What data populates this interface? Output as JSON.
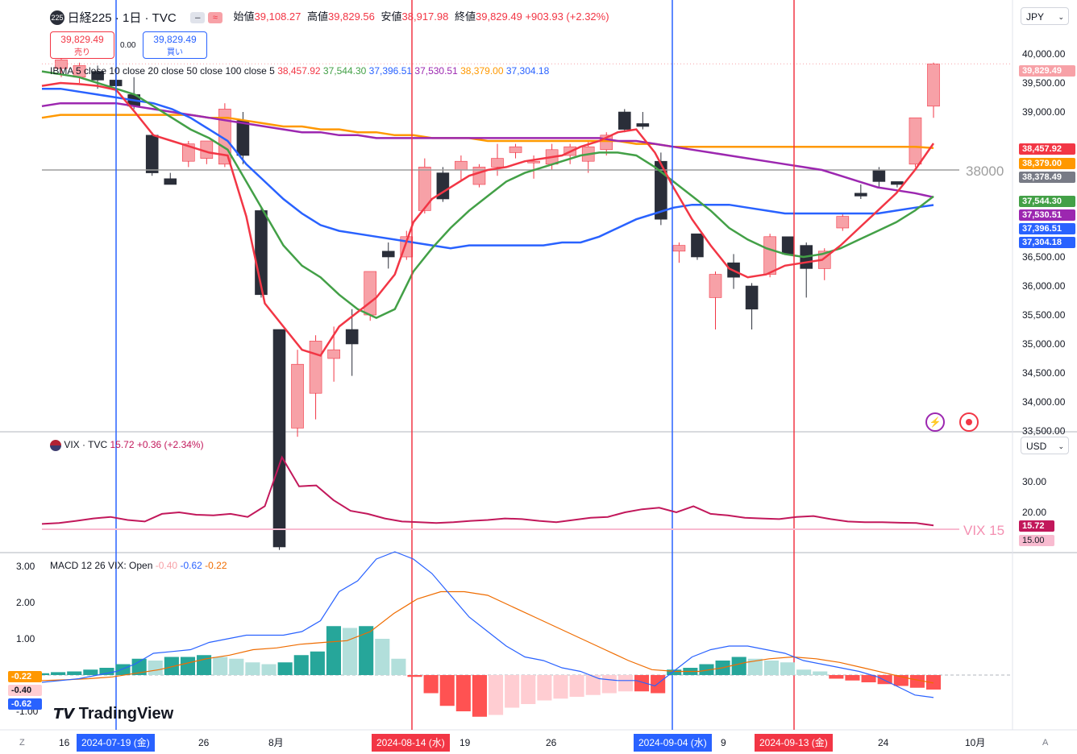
{
  "header": {
    "symbol_badge": "225",
    "symbol": "日経225 · 1日 · TVC",
    "open_label": "始値",
    "open": "39,108.27",
    "high_label": "高値",
    "high": "39,829.56",
    "low_label": "安値",
    "low": "38,917.98",
    "close_label": "終値",
    "close": "39,829.49",
    "change": "+903.93 (+2.32%)",
    "sell_price": "39,829.49",
    "sell_label": "売り",
    "spread": "0.00",
    "buy_price": "39,829.49",
    "buy_label": "買い",
    "currency": "JPY"
  },
  "indicators": {
    "ibma_label": "IBMA 5 close 10 close 20 close 50 close 100 close 5",
    "ibma_values": [
      "38,457.92",
      "37,544.30",
      "37,396.51",
      "37,530.51",
      "38,379.00",
      "37,304.18"
    ],
    "hline_label": "38000",
    "vix_label": "VIX · TVC",
    "vix_value": "15.72",
    "vix_change": "+0.36 (+2.34%)",
    "vix_currency": "USD",
    "vix_hline_label": "VIX 15",
    "macd_label": "MACD 12 26 VIX: Open",
    "macd_values": [
      "-0.40",
      "-0.62",
      "-0.22"
    ]
  },
  "price_scale": {
    "ticks": [
      "40,000.00",
      "39,500.00",
      "39,000.00",
      "38,000.00",
      "36,500.00",
      "36,000.00",
      "35,500.00",
      "35,000.00",
      "34,500.00",
      "34,000.00",
      "33,500.00"
    ],
    "labels": [
      {
        "text": "39,829.49",
        "color": "#ffffff",
        "bg": "#f7a1a7"
      },
      {
        "text": "38,457.92",
        "color": "#ffffff",
        "bg": "#f23645"
      },
      {
        "text": "38,379.00",
        "color": "#ffffff",
        "bg": "#ff9800"
      },
      {
        "text": "38,378.49",
        "color": "#ffffff",
        "bg": "#787b86"
      },
      {
        "text": "37,544.30",
        "color": "#ffffff",
        "bg": "#43a047"
      },
      {
        "text": "37,530.51",
        "color": "#ffffff",
        "bg": "#9c27b0"
      },
      {
        "text": "37,396.51",
        "color": "#ffffff",
        "bg": "#2962ff"
      },
      {
        "text": "37,304.18",
        "color": "#ffffff",
        "bg": "#2962ff"
      }
    ]
  },
  "vix_scale": {
    "ticks": [
      "30.00",
      "20.00",
      "15.00"
    ],
    "current": "15.72"
  },
  "macd_scale": {
    "ticks": [
      "3.00",
      "2.00",
      "1.00",
      "-1.00"
    ],
    "labels": [
      "-0.22",
      "-0.40",
      "-0.62"
    ]
  },
  "time_axis": {
    "ticks": [
      "16",
      "26",
      "8月",
      "19",
      "26",
      "9",
      "24",
      "10月"
    ],
    "events": [
      {
        "text": "2024-07-19 (金)",
        "color": "#2962ff"
      },
      {
        "text": "2024-08-14 (水)",
        "color": "#f23645"
      },
      {
        "text": "2024-09-04 (水)",
        "color": "#2962ff"
      },
      {
        "text": "2024-09-13 (金)",
        "color": "#f23645"
      }
    ]
  },
  "colors": {
    "up_candle": "#f7a1a7",
    "down_candle": "#2a2e39",
    "ma5": "#f23645",
    "ma10": "#43a047",
    "ma20": "#2962ff",
    "ma50": "#9c27b0",
    "ma100": "#ff9800",
    "vix": "#c2185b",
    "macd_line": "#2962ff",
    "signal_line": "#ef6c00",
    "hist_pos_strong": "#26a69a",
    "hist_pos_weak": "#b2dfdb",
    "hist_neg_strong": "#ff5252",
    "hist_neg_weak": "#ffcdd2"
  },
  "branding": {
    "logo_text": "TradingView"
  },
  "chart_data": [
    {
      "type": "candlestick",
      "title": "日経225 · 1日 · TVC",
      "candles": [
        {
          "o": 39750,
          "h": 39950,
          "l": 39600,
          "c": 39900
        },
        {
          "o": 39600,
          "h": 39850,
          "l": 39500,
          "c": 39800
        },
        {
          "o": 39700,
          "h": 39800,
          "l": 39400,
          "c": 39550
        },
        {
          "o": 39550,
          "h": 39650,
          "l": 39350,
          "c": 39450
        },
        {
          "o": 39300,
          "h": 39600,
          "l": 39050,
          "c": 39100
        },
        {
          "o": 38600,
          "h": 38650,
          "l": 37900,
          "c": 37950
        },
        {
          "o": 37850,
          "h": 37950,
          "l": 37750,
          "c": 37750
        },
        {
          "o": 38150,
          "h": 38500,
          "l": 38050,
          "c": 38450
        },
        {
          "o": 38200,
          "h": 38500,
          "l": 38100,
          "c": 38500
        },
        {
          "o": 38100,
          "h": 39150,
          "l": 38050,
          "c": 39050
        },
        {
          "o": 38850,
          "h": 39000,
          "l": 38100,
          "c": 38250
        },
        {
          "o": 37300,
          "h": 37350,
          "l": 35800,
          "c": 35850
        },
        {
          "o": 35250,
          "h": 35250,
          "l": 31450,
          "c": 31500
        },
        {
          "o": 33550,
          "h": 34900,
          "l": 33400,
          "c": 34650
        },
        {
          "o": 34150,
          "h": 35150,
          "l": 33700,
          "c": 35050
        },
        {
          "o": 34750,
          "h": 35300,
          "l": 34350,
          "c": 34900
        },
        {
          "o": 35250,
          "h": 35600,
          "l": 34450,
          "c": 35000
        },
        {
          "o": 35500,
          "h": 36250,
          "l": 35400,
          "c": 36250
        },
        {
          "o": 36600,
          "h": 36750,
          "l": 36300,
          "c": 36500
        },
        {
          "o": 36500,
          "h": 36950,
          "l": 36450,
          "c": 36850
        },
        {
          "o": 37300,
          "h": 38200,
          "l": 37250,
          "c": 38050
        },
        {
          "o": 37950,
          "h": 38050,
          "l": 37450,
          "c": 37500
        },
        {
          "o": 38000,
          "h": 38250,
          "l": 37800,
          "c": 38150
        },
        {
          "o": 37750,
          "h": 38100,
          "l": 37700,
          "c": 38050
        },
        {
          "o": 38050,
          "h": 38450,
          "l": 37900,
          "c": 38200
        },
        {
          "o": 38300,
          "h": 38450,
          "l": 38200,
          "c": 38400
        },
        {
          "o": 38150,
          "h": 38250,
          "l": 37850,
          "c": 38150
        },
        {
          "o": 38100,
          "h": 38450,
          "l": 38000,
          "c": 38350
        },
        {
          "o": 38250,
          "h": 38450,
          "l": 38100,
          "c": 38400
        },
        {
          "o": 38150,
          "h": 38500,
          "l": 37950,
          "c": 38400
        },
        {
          "o": 38350,
          "h": 38650,
          "l": 38250,
          "c": 38600
        },
        {
          "o": 39000,
          "h": 39050,
          "l": 38650,
          "c": 38700
        },
        {
          "o": 38800,
          "h": 39000,
          "l": 38700,
          "c": 38750
        },
        {
          "o": 38150,
          "h": 38300,
          "l": 37050,
          "c": 37150
        },
        {
          "o": 36600,
          "h": 36750,
          "l": 36400,
          "c": 36700
        },
        {
          "o": 36900,
          "h": 36900,
          "l": 36450,
          "c": 36500
        },
        {
          "o": 35800,
          "h": 36250,
          "l": 35250,
          "c": 36200
        },
        {
          "o": 36400,
          "h": 36550,
          "l": 35950,
          "c": 36150
        },
        {
          "o": 36000,
          "h": 36050,
          "l": 35250,
          "c": 35600
        },
        {
          "o": 36200,
          "h": 36900,
          "l": 36150,
          "c": 36850
        },
        {
          "o": 36850,
          "h": 36850,
          "l": 36550,
          "c": 36550
        },
        {
          "o": 36700,
          "h": 36750,
          "l": 35800,
          "c": 36300
        },
        {
          "o": 36300,
          "h": 36650,
          "l": 36100,
          "c": 36600
        },
        {
          "o": 37000,
          "h": 37250,
          "l": 36950,
          "c": 37200
        },
        {
          "o": 37600,
          "h": 37750,
          "l": 37500,
          "c": 37550
        },
        {
          "o": 38000,
          "h": 38050,
          "l": 37700,
          "c": 37800
        },
        {
          "o": 37800,
          "h": 37800,
          "l": 37700,
          "c": 37750
        },
        {
          "o": 38100,
          "h": 38900,
          "l": 38050,
          "c": 38900
        },
        {
          "o": 39100,
          "h": 39850,
          "l": 38900,
          "c": 39829.49
        }
      ],
      "ma5": [
        39450,
        39500,
        39480,
        39450,
        39380,
        39000,
        38600,
        38500,
        38400,
        38300,
        38250,
        37200,
        35700,
        35300,
        34900,
        34800,
        35300,
        35550,
        35800,
        36200,
        37100,
        37500,
        37700,
        37900,
        38000,
        38050,
        38150,
        38200,
        38250,
        38400,
        38500,
        38650,
        38700,
        38300,
        37700,
        37150,
        36700,
        36300,
        36150,
        36200,
        36350,
        36400,
        36450,
        36700,
        37000,
        37300,
        37600,
        38000,
        38457.92
      ],
      "ma10": [
        39700,
        39650,
        39600,
        39500,
        39400,
        39300,
        39100,
        38900,
        38700,
        38550,
        38350,
        37800,
        37250,
        36700,
        36350,
        36150,
        35850,
        35600,
        35450,
        35600,
        36250,
        36650,
        37000,
        37300,
        37550,
        37800,
        37950,
        38050,
        38150,
        38250,
        38300,
        38300,
        38250,
        38050,
        37800,
        37550,
        37300,
        37000,
        36800,
        36650,
        36550,
        36500,
        36550,
        36650,
        36800,
        36950,
        37100,
        37300,
        37544.3
      ],
      "ma20": [
        39400,
        39400,
        39350,
        39300,
        39250,
        39200,
        39150,
        39050,
        38900,
        38700,
        38500,
        38100,
        37800,
        37500,
        37250,
        37050,
        36950,
        36900,
        36850,
        36800,
        36750,
        36700,
        36650,
        36700,
        36700,
        36700,
        36700,
        36700,
        36750,
        36750,
        36850,
        37000,
        37150,
        37250,
        37350,
        37400,
        37400,
        37400,
        37350,
        37300,
        37250,
        37250,
        37250,
        37250,
        37250,
        37250,
        37300,
        37350,
        37396.51
      ],
      "ma50": [
        39100,
        39150,
        39150,
        39150,
        39150,
        39100,
        39050,
        39000,
        38950,
        38900,
        38850,
        38800,
        38750,
        38700,
        38650,
        38650,
        38600,
        38600,
        38550,
        38550,
        38550,
        38550,
        38550,
        38550,
        38550,
        38550,
        38550,
        38550,
        38550,
        38550,
        38550,
        38500,
        38500,
        38450,
        38400,
        38350,
        38300,
        38250,
        38200,
        38150,
        38100,
        38050,
        38000,
        37900,
        37800,
        37700,
        37650,
        37600,
        37530.51
      ],
      "ma100": [
        38900,
        38950,
        38950,
        38950,
        38950,
        38950,
        38950,
        38950,
        38950,
        38900,
        38900,
        38850,
        38800,
        38750,
        38750,
        38700,
        38700,
        38650,
        38650,
        38600,
        38600,
        38550,
        38550,
        38550,
        38500,
        38500,
        38500,
        38500,
        38500,
        38500,
        38500,
        38500,
        38450,
        38450,
        38400,
        38400,
        38400,
        38400,
        38400,
        38400,
        38400,
        38400,
        38400,
        38400,
        38400,
        38400,
        38400,
        38400,
        38379.0
      ],
      "ylim": [
        33500,
        40000
      ],
      "hline": 38000
    },
    {
      "type": "line",
      "title": "VIX · TVC",
      "values": [
        16.2,
        16.5,
        17.2,
        18.0,
        18.5,
        17.5,
        17.0,
        19.5,
        20.0,
        19.2,
        19.0,
        19.5,
        18.5,
        22.0,
        38.0,
        28.5,
        28.8,
        24.0,
        20.5,
        19.5,
        18.0,
        17.0,
        16.8,
        16.5,
        16.8,
        17.2,
        17.5,
        18.0,
        17.8,
        17.2,
        16.8,
        17.5,
        18.2,
        18.5,
        20.0,
        21.0,
        21.5,
        20.0,
        22.0,
        19.5,
        19.0,
        18.2,
        18.0,
        17.8,
        18.5,
        18.8,
        17.8,
        17.0,
        16.8,
        16.8,
        16.6,
        16.5,
        15.72
      ],
      "ylim": [
        10,
        40
      ],
      "hline": 15
    },
    {
      "type": "bar+line",
      "title": "MACD 12 26 VIX: Open",
      "histogram": [
        0.05,
        0.08,
        0.1,
        0.15,
        0.2,
        0.3,
        0.45,
        0.4,
        0.5,
        0.5,
        0.55,
        0.5,
        0.45,
        0.35,
        0.3,
        0.35,
        0.55,
        0.65,
        1.35,
        1.3,
        1.35,
        1.0,
        0.45,
        -0.05,
        -0.5,
        -0.85,
        -1.0,
        -1.15,
        -1.1,
        -0.9,
        -0.8,
        -0.7,
        -0.65,
        -0.6,
        -0.55,
        -0.5,
        -0.45,
        -0.45,
        -0.5,
        0.15,
        0.2,
        0.3,
        0.4,
        0.5,
        0.45,
        0.4,
        0.35,
        0.15,
        0.1,
        -0.1,
        -0.15,
        -0.2,
        -0.25,
        -0.3,
        -0.35,
        -0.4
      ],
      "macd": [
        -0.2,
        -0.15,
        -0.1,
        0.0,
        0.1,
        0.3,
        0.6,
        0.65,
        0.7,
        0.9,
        1.0,
        1.1,
        1.1,
        1.1,
        1.2,
        1.5,
        2.3,
        2.6,
        3.2,
        3.4,
        3.2,
        2.8,
        2.2,
        1.6,
        1.2,
        0.8,
        0.5,
        0.4,
        0.2,
        0.1,
        -0.1,
        -0.15,
        -0.15,
        -0.3,
        0.1,
        0.5,
        0.7,
        0.8,
        0.8,
        0.7,
        0.6,
        0.4,
        0.3,
        0.2,
        0.1,
        -0.05,
        -0.3,
        -0.55,
        -0.62
      ],
      "signal": [
        -0.15,
        -0.13,
        -0.1,
        -0.05,
        0.05,
        0.15,
        0.3,
        0.45,
        0.55,
        0.7,
        0.75,
        0.85,
        0.9,
        0.95,
        1.2,
        1.7,
        2.1,
        2.3,
        2.3,
        2.2,
        1.9,
        1.6,
        1.3,
        1.0,
        0.7,
        0.4,
        0.15,
        0.1,
        0.1,
        0.2,
        0.35,
        0.45,
        0.5,
        0.45,
        0.35,
        0.2,
        0.05,
        -0.1,
        -0.22
      ],
      "ylim": [
        -1,
        3.2
      ],
      "ticks": [
        3,
        2,
        1,
        -1
      ]
    }
  ]
}
